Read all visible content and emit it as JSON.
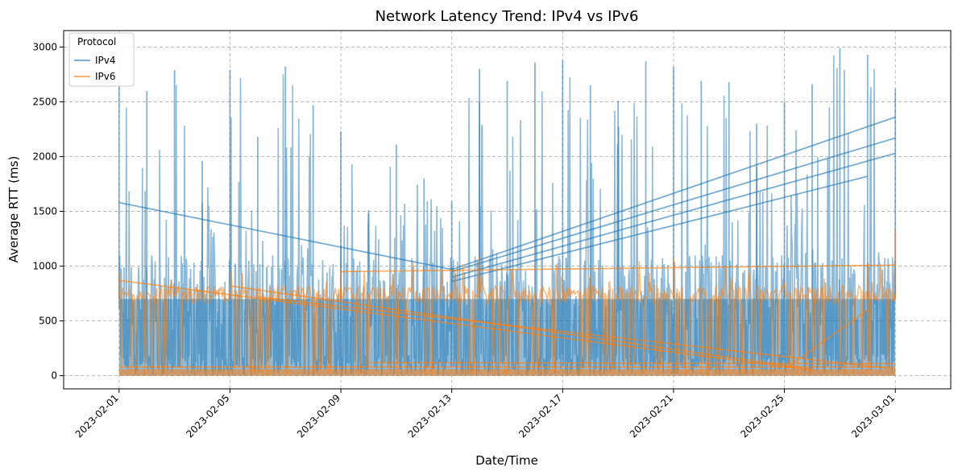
{
  "chart_data": {
    "type": "line",
    "title": "Network Latency Trend: IPv4 vs IPv6",
    "xlabel": "Date/Time",
    "ylabel": "Average RTT (ms)",
    "x_tick_labels": [
      "2023-02-01",
      "2023-02-05",
      "2023-02-09",
      "2023-02-13",
      "2023-02-17",
      "2023-02-21",
      "2023-02-25",
      "2023-03-01"
    ],
    "x_tick_dates": [
      "2023-02-01",
      "2023-02-05",
      "2023-02-09",
      "2023-02-13",
      "2023-02-17",
      "2023-02-21",
      "2023-02-25",
      "2023-03-01"
    ],
    "y_ticks": [
      0,
      500,
      1000,
      1500,
      2000,
      2500,
      3000
    ],
    "xlim": [
      "2023-01-30",
      "2023-03-03"
    ],
    "ylim": [
      -120,
      3150
    ],
    "grid": true,
    "legend": {
      "title": "Protocol",
      "position": "top-left"
    },
    "series": [
      {
        "name": "IPv4",
        "color": "#1f77b4",
        "peaks": [
          {
            "x": "2023-02-01",
            "y": 2690
          },
          {
            "x": "2023-02-02",
            "y": 2600
          },
          {
            "x": "2023-02-03",
            "y": 2790
          },
          {
            "x": "2023-02-04",
            "y": 1960
          },
          {
            "x": "2023-02-05",
            "y": 2790
          },
          {
            "x": "2023-02-06",
            "y": 2180
          },
          {
            "x": "2023-02-07",
            "y": 2820
          },
          {
            "x": "2023-02-08",
            "y": 2470
          },
          {
            "x": "2023-02-09",
            "y": 2230
          },
          {
            "x": "2023-02-10",
            "y": 1510
          },
          {
            "x": "2023-02-11",
            "y": 2110
          },
          {
            "x": "2023-02-12",
            "y": 1800
          },
          {
            "x": "2023-02-13",
            "y": 1590
          },
          {
            "x": "2023-02-14",
            "y": 2800
          },
          {
            "x": "2023-02-15",
            "y": 2690
          },
          {
            "x": "2023-02-16",
            "y": 2860
          },
          {
            "x": "2023-02-17",
            "y": 2880
          },
          {
            "x": "2023-02-18",
            "y": 2650
          },
          {
            "x": "2023-02-19",
            "y": 2510
          },
          {
            "x": "2023-02-20",
            "y": 2870
          },
          {
            "x": "2023-02-21",
            "y": 2820
          },
          {
            "x": "2023-02-22",
            "y": 2690
          },
          {
            "x": "2023-02-23",
            "y": 2680
          },
          {
            "x": "2023-02-24",
            "y": 2300
          },
          {
            "x": "2023-02-25",
            "y": 2500
          },
          {
            "x": "2023-02-26",
            "y": 2660
          },
          {
            "x": "2023-02-27",
            "y": 2990
          },
          {
            "x": "2023-02-28",
            "y": 2930
          },
          {
            "x": "2023-03-01",
            "y": 2620
          }
        ],
        "wrap_segments": [
          {
            "from": {
              "x": "2023-02-01",
              "y": 1580
            },
            "to": {
              "x": "2023-02-13",
              "y": 970
            }
          },
          {
            "from": {
              "x": "2023-02-13",
              "y": 970
            },
            "to": {
              "x": "2023-03-01",
              "y": 2360
            }
          },
          {
            "from": {
              "x": "2023-02-13",
              "y": 950
            },
            "to": {
              "x": "2023-03-01",
              "y": 2170
            }
          },
          {
            "from": {
              "x": "2023-02-13",
              "y": 900
            },
            "to": {
              "x": "2023-03-01",
              "y": 2030
            }
          },
          {
            "from": {
              "x": "2023-02-13",
              "y": 860
            },
            "to": {
              "x": "2023-02-28",
              "y": 1820
            }
          }
        ]
      },
      {
        "name": "IPv6",
        "color": "#ff7f0e",
        "baseline_ms": 700,
        "peaks": [
          {
            "x": "2023-02-01",
            "y": 940
          },
          {
            "x": "2023-02-09",
            "y": 980
          },
          {
            "x": "2023-02-14",
            "y": 1090
          },
          {
            "x": "2023-02-21",
            "y": 1070
          },
          {
            "x": "2023-02-28",
            "y": 1030
          },
          {
            "x": "2023-03-01",
            "y": 1330
          }
        ],
        "wrap_segments": [
          {
            "from": {
              "x": "2023-02-09",
              "y": 950
            },
            "to": {
              "x": "2023-03-01",
              "y": 1010
            }
          },
          {
            "from": {
              "x": "2023-02-01",
              "y": 870
            },
            "to": {
              "x": "2023-02-26",
              "y": 50
            }
          },
          {
            "from": {
              "x": "2023-02-05",
              "y": 820
            },
            "to": {
              "x": "2023-02-26",
              "y": 60
            }
          },
          {
            "from": {
              "x": "2023-02-06",
              "y": 720
            },
            "to": {
              "x": "2023-03-01",
              "y": 60
            }
          },
          {
            "from": {
              "x": "2023-02-10",
              "y": 120
            },
            "to": {
              "x": "2023-03-01",
              "y": 110
            }
          },
          {
            "from": {
              "x": "2023-02-01",
              "y": 80
            },
            "to": {
              "x": "2023-03-01",
              "y": 80
            }
          },
          {
            "from": {
              "x": "2023-02-25",
              "y": 60
            },
            "to": {
              "x": "2023-02-28",
              "y": 600
            }
          }
        ]
      }
    ]
  }
}
